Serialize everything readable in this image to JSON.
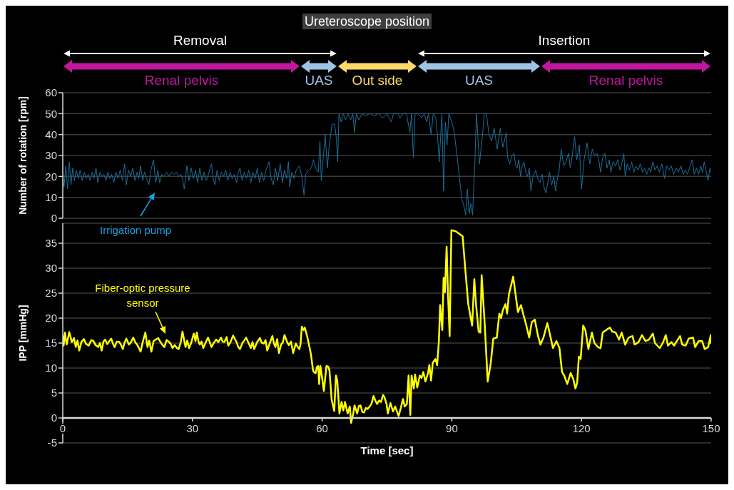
{
  "chart_data": [
    {
      "type": "line",
      "title": "Ureteroscope position",
      "ylabel": "Number of rotation [rpm]",
      "color": "#1b6f9a",
      "x": [
        0,
        0.3,
        0.7,
        1.1,
        1.5,
        1.9,
        2.3,
        2.7,
        3.1,
        3.6,
        4,
        4.5,
        5,
        5.4,
        5.9,
        6.3,
        6.8,
        7.2,
        7.7,
        8.1,
        8.6,
        9,
        9.5,
        10,
        10.4,
        10.9,
        11.3,
        11.8,
        12.3,
        12.8,
        13.3,
        13.8,
        14.3,
        14.7,
        15.2,
        15.7,
        16.2,
        16.7,
        17.2,
        17.6,
        18,
        18.5,
        18.9,
        19.4,
        19.9,
        20.4,
        21,
        21.5,
        22,
        22.4,
        22.9,
        23.4,
        24,
        24.6,
        25.2,
        25.8,
        26.3,
        26.8,
        27.3,
        27.7,
        28.1,
        28.7,
        29.2,
        29.7,
        30.2,
        30.7,
        31.2,
        31.7,
        32.2,
        32.7,
        33.2,
        33.7,
        34.4,
        34.8,
        35.2,
        35.7,
        36.2,
        36.7,
        37.2,
        37.7,
        38.2,
        38.7,
        39.2,
        39.7,
        40.2,
        40.6,
        41,
        41.5,
        42,
        42.5,
        43,
        43.5,
        44,
        44.5,
        45,
        45.5,
        46,
        46.5,
        47,
        47.7,
        48.2,
        48.7,
        49.2,
        49.7,
        50.3,
        50.8,
        51.3,
        51.8,
        52.2,
        52.5,
        53,
        53.5,
        54,
        54.7,
        55.3,
        55.8,
        56.2,
        56.9,
        57.5,
        58,
        58.5,
        59.1,
        59.5,
        59.8,
        60.3,
        60.7,
        61.2,
        61.7,
        62.3,
        62.9,
        63.3,
        63.6,
        63.9,
        64.4,
        64.9,
        65.4,
        66,
        66.6,
        67.1,
        67.5,
        67.9,
        68.5,
        69.2,
        70,
        71,
        72,
        73,
        74,
        75,
        76,
        76.5,
        77.5,
        78,
        78.8,
        79.5,
        80.3,
        80.7,
        81.1,
        81.5,
        82.2,
        83,
        83.6,
        84.2,
        84.6,
        85.2,
        85.7,
        86.3,
        86.7,
        87.1,
        87.7,
        88.1,
        88.5,
        88.9,
        89.3,
        90,
        90.5,
        91.2,
        92,
        92.3,
        92.8,
        93.2,
        93.6,
        94,
        94.4,
        94.8,
        95.3,
        95.7,
        96.4,
        97.2,
        97.5,
        98,
        98.6,
        99.2,
        99.8,
        100.5,
        101.2,
        101.8,
        102.6,
        102.9,
        103.4,
        103.9,
        104.4,
        104.8,
        105.1,
        105.5,
        105.9,
        106.3,
        106.7,
        107.1,
        107.5,
        107.9,
        108.3,
        108.8,
        109.4,
        109.9,
        110.4,
        110.9,
        111.3,
        111.8,
        112.2,
        112.6,
        113.1,
        113.6,
        114,
        114.5,
        114.8,
        115.3,
        115.9,
        116.4,
        117,
        117.4,
        117.8,
        118.4,
        118.9,
        119.5,
        120,
        120.6,
        121.3,
        121.9,
        122.5,
        123,
        123.6,
        124,
        124.4,
        124.9,
        125.4,
        125.9,
        126.4,
        126.8,
        127.3,
        127.9,
        128.4,
        128.9,
        129.4,
        129.8,
        130.1,
        130.6,
        131.1,
        131.6,
        132.1,
        132.6,
        133.1,
        133.6,
        134.1,
        134.6,
        135.1,
        135.6,
        136,
        136.5,
        137,
        137.5,
        138,
        138.6,
        139.2,
        139.7,
        140.2,
        140.8,
        141.3,
        141.9,
        142.4,
        143,
        143.5,
        144,
        144.5,
        145,
        145.6,
        146.1,
        146.6,
        147.1,
        147.6,
        148,
        148.4,
        148.8,
        149.3,
        149.7,
        150
      ],
      "values": [
        22,
        15,
        25,
        14,
        27,
        16,
        24,
        18,
        23,
        19,
        23,
        18,
        22,
        19,
        21,
        18,
        22,
        19,
        24,
        17,
        22,
        20,
        21,
        18,
        22,
        19,
        21,
        17,
        22,
        19,
        23,
        18,
        26,
        16,
        23,
        20,
        24,
        18,
        22,
        19,
        25,
        18,
        22,
        19,
        16,
        23,
        28,
        17,
        23,
        17,
        21,
        20,
        22,
        20,
        22,
        21,
        22,
        20,
        21,
        19,
        14,
        25,
        18,
        24,
        19,
        23,
        17,
        24,
        18,
        22,
        18,
        21,
        26,
        19,
        16,
        23,
        18,
        22,
        20,
        23,
        18,
        22,
        19,
        21,
        17,
        22,
        24,
        18,
        22,
        19,
        23,
        17,
        22,
        19,
        24,
        17,
        22,
        18,
        23,
        27,
        19,
        16,
        24,
        18,
        26,
        17,
        23,
        19,
        27,
        15,
        22,
        19,
        23,
        25,
        20,
        11,
        21,
        23,
        24,
        28,
        24,
        22,
        37,
        18,
        30,
        40,
        24,
        36,
        45,
        45,
        38,
        27,
        50,
        46,
        50,
        47,
        50,
        47,
        50,
        41,
        50,
        47,
        50,
        49,
        50,
        49,
        50,
        48,
        50,
        46,
        50,
        50,
        48,
        50,
        50,
        41,
        50,
        29,
        50,
        50,
        48,
        50,
        46,
        50,
        40,
        50,
        48,
        39,
        27,
        50,
        13,
        46,
        35,
        50,
        46,
        42,
        30,
        15,
        9,
        6,
        1.5,
        14,
        2,
        7,
        1.5,
        25,
        50,
        26,
        42,
        50,
        50,
        40,
        37,
        43,
        33,
        43,
        34,
        41,
        29,
        26,
        30,
        31,
        25,
        24,
        28,
        20,
        25,
        27,
        22,
        20,
        24,
        13,
        20,
        23,
        19,
        17,
        21,
        15,
        12,
        17,
        22,
        16,
        20,
        13,
        20,
        22,
        33,
        25,
        27,
        31,
        24,
        29,
        39,
        28,
        35,
        14,
        28,
        36,
        26,
        33,
        30,
        31,
        28,
        22,
        29,
        31,
        24,
        28,
        22,
        27,
        25,
        28,
        23,
        27,
        31,
        20,
        26,
        23,
        27,
        22,
        25,
        23,
        26,
        22,
        24,
        21,
        24,
        22,
        27,
        23,
        25,
        22,
        26,
        19,
        25,
        23,
        25,
        21,
        24,
        22,
        25,
        21,
        23,
        21,
        24,
        28,
        21,
        24,
        21,
        25,
        22,
        27,
        23,
        18,
        24,
        22
      ],
      "xlim": [
        0,
        150
      ],
      "xticks": [
        0,
        30,
        60,
        90,
        120,
        150
      ],
      "ylim": [
        0,
        60
      ],
      "yticks": [
        0,
        10,
        20,
        30,
        40,
        50,
        60
      ],
      "grid": "y",
      "tick_labels": "y",
      "annotations": [
        "Removal",
        "Insertion",
        "Renal pelvis",
        "UAS",
        "Out side",
        "UAS",
        "Renal pelvis",
        "Irrigation pump"
      ]
    },
    {
      "type": "line",
      "xlabel": "Time [sec]",
      "ylabel": "IPP [mmHg]",
      "color": "#ffff00",
      "x": [
        0,
        0.2,
        0.5,
        0.9,
        1.5,
        2.1,
        2.6,
        3,
        3.4,
        3.8,
        4.3,
        4.9,
        5.4,
        6,
        6.6,
        7.1,
        7.6,
        8.2,
        8.6,
        9,
        9.4,
        9.8,
        10.3,
        10.7,
        11.2,
        11.6,
        12,
        12.5,
        13.1,
        13.5,
        13.9,
        14.3,
        14.7,
        15.3,
        15.8,
        16.3,
        16.8,
        17.2,
        17.6,
        18,
        18.5,
        19.1,
        19.6,
        20,
        20.5,
        21,
        21.5,
        22.1,
        22.6,
        23,
        23.5,
        24,
        24.6,
        25,
        25.4,
        25.9,
        26.4,
        26.8,
        27.3,
        27.7,
        28.1,
        28.4,
        28.8,
        29.2,
        29.7,
        30.3,
        30.7,
        31,
        31.4,
        31.7,
        32.1,
        32.5,
        33,
        33.6,
        34,
        34.4,
        34.9,
        35.5,
        36,
        36.6,
        37,
        37.4,
        37.9,
        38.3,
        38.8,
        39.4,
        39.8,
        40.2,
        40.6,
        41,
        41.6,
        42,
        42.4,
        43,
        43.5,
        43.9,
        44.3,
        44.9,
        45.6,
        46,
        46.5,
        46.9,
        47.3,
        47.9,
        48.5,
        48.9,
        49.2,
        49.6,
        50,
        50.5,
        50.9,
        51.3,
        51.9,
        52.3,
        52.8,
        53.3,
        53.9,
        54.3,
        54.7,
        55,
        55.3,
        55.7,
        56,
        56.6,
        57,
        57.4,
        57.9,
        58.2,
        58.5,
        58.8,
        59.1,
        59.3,
        59.6,
        60,
        60.4,
        61,
        61.4,
        61.7,
        62.2,
        62.8,
        63.2,
        63.5,
        64,
        64.5,
        64.9,
        65.3,
        65.9,
        66.4,
        66.7,
        67.2,
        67.5,
        68.1,
        68.5,
        68.9,
        69.3,
        69.7,
        70.1,
        70.5,
        71,
        71.4,
        71.9,
        72.3,
        72.7,
        73.2,
        73.6,
        74.1,
        74.4,
        74.9,
        75.2,
        75.8,
        76.4,
        76.9,
        77.4,
        77.7,
        78.2,
        78.7,
        79.1,
        79.6,
        80,
        80.4,
        80.7,
        81.2,
        81.5,
        82,
        82.6,
        83,
        83.4,
        83.9,
        84.5,
        84.8,
        85.2,
        85.6,
        86.2,
        86.6,
        87,
        87.3,
        87.8,
        88.1,
        88.4,
        88.8,
        89.1,
        89.5,
        89.9,
        90.9,
        92.5,
        93.1,
        93.8,
        94.7,
        95.2,
        95.6,
        96.2,
        96.6,
        96.9,
        97.6,
        98.3,
        99,
        99.6,
        100.4,
        101,
        101.4,
        101.8,
        102.4,
        102.8,
        103.2,
        104.2,
        104.6,
        105.3,
        106,
        106.5,
        107.1,
        107.9,
        108.5,
        109.2,
        109.9,
        110.5,
        111.2,
        112.1,
        112.6,
        113.4,
        114.2,
        114.9,
        115.5,
        116,
        116.7,
        117.5,
        118.1,
        118.6,
        119,
        119.4,
        119.8,
        120.4,
        120.9,
        121.6,
        122.4,
        123,
        123.8,
        124.4,
        124.9,
        126,
        126.6,
        127.1,
        127.9,
        128.7,
        129.3,
        130.1,
        130.9,
        131.8,
        132.3,
        133.2,
        134,
        134.8,
        135.6,
        136.5,
        137,
        138.1,
        138.9,
        139.5,
        140,
        140.8,
        141.4,
        142.8,
        143.3,
        144.1,
        144.8,
        145.8,
        146.3,
        147.1,
        147.9,
        148.5,
        149.3,
        149.9,
        150
      ],
      "values": [
        16.4,
        14.5,
        17.1,
        14.7,
        17.2,
        15.2,
        16,
        14.2,
        15.5,
        13.5,
        15.2,
        15.8,
        14.8,
        14.5,
        15.6,
        15.4,
        14.6,
        14.2,
        15,
        13.5,
        15.3,
        15.7,
        14.8,
        15.3,
        15.9,
        14.9,
        14.2,
        15.3,
        15.2,
        14.6,
        13.8,
        15.1,
        15.9,
        14.7,
        15.2,
        16.1,
        15.1,
        14.7,
        14,
        13.3,
        15.2,
        17.1,
        14.2,
        15.5,
        13.3,
        15.4,
        15.7,
        16,
        15.2,
        14.7,
        14.2,
        15.6,
        15.2,
        14.8,
        14,
        14.6,
        14,
        13.8,
        15.2,
        17.3,
        15.5,
        14.2,
        15.5,
        14,
        15,
        16.9,
        15.4,
        17.1,
        15.3,
        14.7,
        15.3,
        14,
        15,
        16.1,
        15.2,
        14.2,
        15,
        15.7,
        15.2,
        16.1,
        15.3,
        15.2,
        16.2,
        14.5,
        15.2,
        16.5,
        15.8,
        15.2,
        14.2,
        13.8,
        15.1,
        15.5,
        16.1,
        15,
        14,
        15.2,
        13.8,
        15.1,
        16,
        15.1,
        14.9,
        15.6,
        13.5,
        15,
        16.4,
        14.8,
        14.2,
        15.8,
        13,
        14.7,
        15.1,
        16.6,
        15.2,
        14.6,
        15.3,
        13,
        14.9,
        14.3,
        13.8,
        14.7,
        18.3,
        17.6,
        18.1,
        16.1,
        14.5,
        12.8,
        9.5,
        9.1,
        9,
        10.2,
        10.4,
        6.8,
        10.4,
        8,
        5.4,
        10.4,
        10.3,
        9.5,
        3.7,
        1.4,
        8.5,
        7.5,
        0.9,
        3.2,
        1.5,
        3.2,
        0.9,
        2.3,
        -1,
        0.9,
        2.5,
        0.9,
        2.4,
        2.5,
        1.2,
        1.1,
        2,
        1.8,
        2.3,
        2.8,
        4.4,
        3.5,
        2.8,
        3.5,
        3.2,
        4.6,
        4.2,
        2.8,
        0.9,
        3,
        1.3,
        2.3,
        1.1,
        0.4,
        2,
        3.8,
        2.3,
        2.8,
        8.5,
        0.6,
        8.5,
        5.9,
        8.7,
        6.1,
        8.5,
        8,
        9.2,
        7.3,
        9,
        10.6,
        7.5,
        11.1,
        11.8,
        10.6,
        15.2,
        22.6,
        17.6,
        28.1,
        25.2,
        34.3,
        25.2,
        16.4,
        37.6,
        37.4,
        36.4,
        30,
        22.8,
        18.5,
        27.8,
        22.8,
        17.3,
        17.1,
        28.6,
        19,
        7.3,
        10.9,
        15.9,
        16.1,
        20.9,
        20,
        21.6,
        22.8,
        20.9,
        24.7,
        28.3,
        25.7,
        21.2,
        22.6,
        20.9,
        19,
        16.1,
        19.2,
        19.7,
        16.6,
        14.7,
        16.1,
        19,
        17.1,
        14,
        15.4,
        14,
        9.2,
        8.5,
        6.8,
        9,
        7.8,
        5.9,
        7.1,
        12.3,
        11.8,
        18.5,
        17.6,
        13.8,
        17.1,
        15,
        14.2,
        14,
        17.1,
        17.8,
        18.1,
        17.3,
        17.1,
        15.7,
        17.1,
        14.7,
        16.1,
        16.4,
        14.7,
        15.2,
        16.6,
        15.4,
        15.7,
        16.9,
        15,
        14,
        15.2,
        16.6,
        14.5,
        15.2,
        14.5,
        16.4,
        14.7,
        14.5,
        15.9,
        16.1,
        14.2,
        15.4,
        15.4,
        13.8,
        14.2,
        16.6,
        15
      ],
      "xlim": [
        0,
        150
      ],
      "xticks": [
        0,
        30,
        60,
        90,
        120,
        150
      ],
      "ylim": [
        -5,
        39
      ],
      "yticks": [
        -5,
        0,
        5,
        10,
        15,
        20,
        25,
        30,
        35
      ],
      "grid": "y",
      "annotations": [
        "Fiber-optic pressure sensor"
      ]
    }
  ]
}
